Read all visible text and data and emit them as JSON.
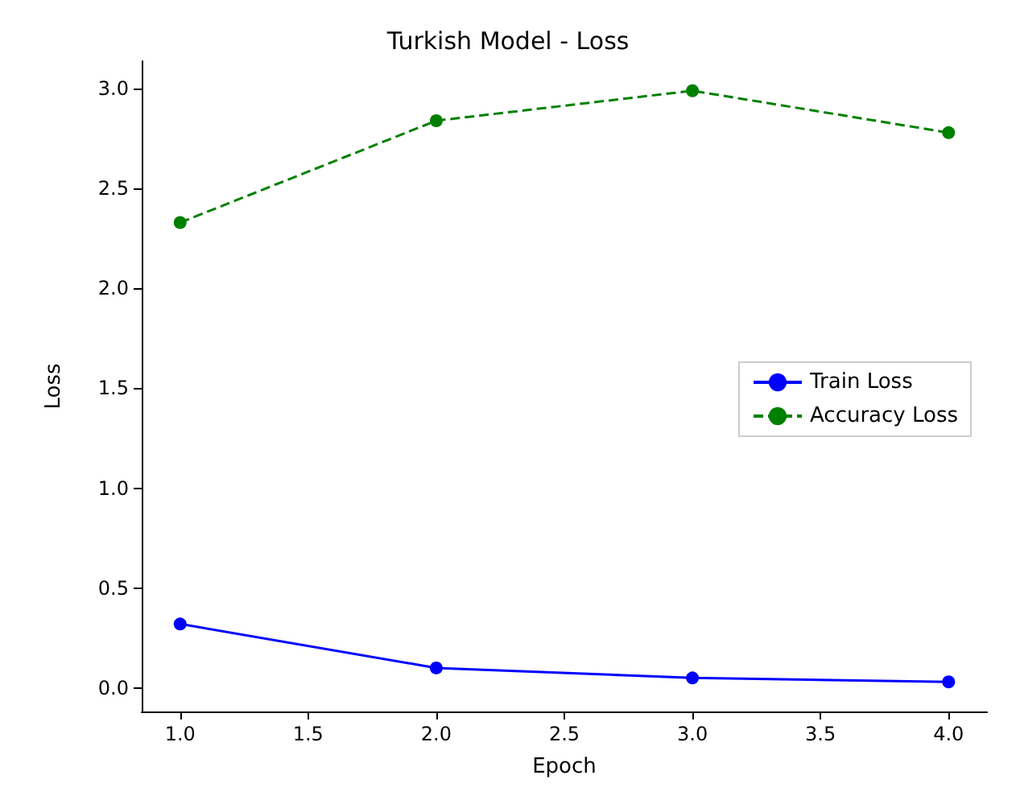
{
  "chart_data": {
    "type": "line",
    "title": "Turkish Model - Loss",
    "xlabel": "Epoch",
    "ylabel": "Loss",
    "x": [
      1,
      2,
      3,
      4
    ],
    "series": [
      {
        "name": "Train Loss",
        "color": "#0000ff",
        "values": [
          0.32,
          0.1,
          0.05,
          0.03
        ],
        "line_style": "solid"
      },
      {
        "name": "Accuracy Loss",
        "color": "#008000",
        "values": [
          2.33,
          2.84,
          2.99,
          2.78
        ],
        "line_style": "dashed"
      }
    ],
    "xlim": [
      0.85,
      4.15
    ],
    "xticks": [
      {
        "value": 1,
        "label": "1.0"
      },
      {
        "value": 1.5,
        "label": "1.5"
      },
      {
        "value": 2,
        "label": "2.0"
      },
      {
        "value": 2.5,
        "label": "2.5"
      },
      {
        "value": 3,
        "label": "3.0"
      },
      {
        "value": 3.5,
        "label": "3.5"
      },
      {
        "value": 4,
        "label": "4.0"
      }
    ],
    "ylim": [
      -0.118,
      3.138
    ],
    "yticks": [
      {
        "value": 0,
        "label": "0.0"
      },
      {
        "value": 0.5,
        "label": "0.5"
      },
      {
        "value": 1,
        "label": "1.0"
      },
      {
        "value": 1.5,
        "label": "1.5"
      },
      {
        "value": 2,
        "label": "2.0"
      },
      {
        "value": 2.5,
        "label": "2.5"
      },
      {
        "value": 3,
        "label": "3.0"
      }
    ],
    "legend": "right",
    "grid": false,
    "marker": "circle"
  }
}
